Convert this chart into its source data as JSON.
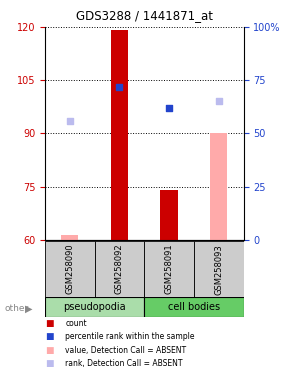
{
  "title": "GDS3288 / 1441871_at",
  "samples": [
    "GSM258090",
    "GSM258092",
    "GSM258091",
    "GSM258093"
  ],
  "ylim_left": [
    60,
    120
  ],
  "ylim_right": [
    0,
    100
  ],
  "yticks_left": [
    60,
    75,
    90,
    105,
    120
  ],
  "yticks_right": [
    0,
    25,
    50,
    75,
    100
  ],
  "ytick_labels_right": [
    "0",
    "25",
    "50",
    "75",
    "100%"
  ],
  "bar_values": [
    61.5,
    119,
    74,
    90
  ],
  "bar_colors": [
    "#ffaaaa",
    "#cc0000",
    "#cc0000",
    "#ffaaaa"
  ],
  "rank_values": [
    56,
    72,
    62,
    65
  ],
  "rank_colors": [
    "#bbbbee",
    "#2244cc",
    "#2244cc",
    "#bbbbee"
  ],
  "bar_bottom": 60,
  "left_ylabel_color": "#cc0000",
  "right_ylabel_color": "#2244cc",
  "bg_color": "#ffffff",
  "plot_bg": "#ffffff",
  "pseudopodia_color": "#aaddaa",
  "cell_bodies_color": "#66cc66",
  "sample_box_color": "#cccccc",
  "legend_items": [
    [
      "#cc0000",
      "count"
    ],
    [
      "#2244cc",
      "percentile rank within the sample"
    ],
    [
      "#ffaaaa",
      "value, Detection Call = ABSENT"
    ],
    [
      "#bbbbee",
      "rank, Detection Call = ABSENT"
    ]
  ]
}
